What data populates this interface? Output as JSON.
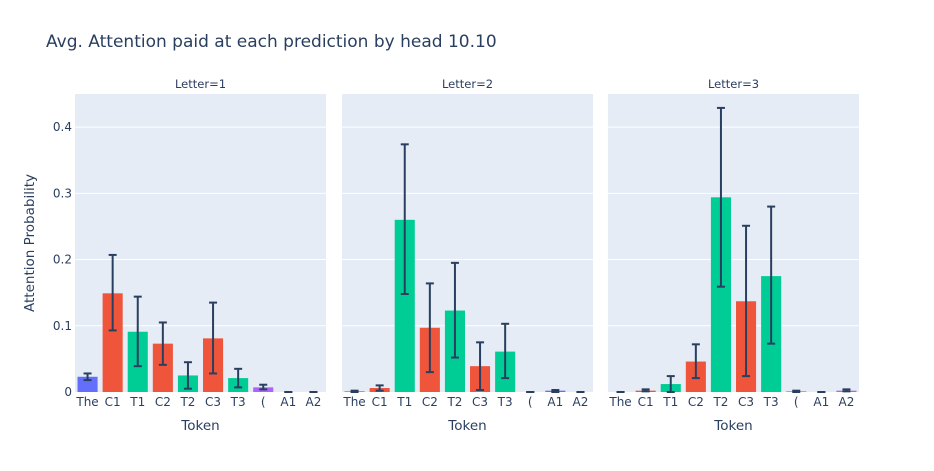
{
  "chart_data": {
    "type": "bar",
    "title": "Avg. Attention paid at each prediction by head 10.10",
    "ylabel": "Attention Probability",
    "xlabel": "Token",
    "ylim": [
      0,
      0.45
    ],
    "yticks": [
      0,
      0.1,
      0.2,
      0.3,
      0.4
    ],
    "ytick_labels": [
      "0",
      "0.1",
      "0.2",
      "0.3",
      "0.4"
    ],
    "categories": [
      "The",
      "C1",
      "T1",
      "C2",
      "T2",
      "C3",
      "T3",
      "(",
      "A1",
      "A2"
    ],
    "category_colors": [
      "#636efa",
      "#ef553b",
      "#00cc96",
      "#ef553b",
      "#00cc96",
      "#ef553b",
      "#00cc96",
      "#ab63fa",
      "#636efa",
      "#ab63fa"
    ],
    "error_bar_color": "#2a3f5f",
    "panel_background": "#e5ecf6",
    "facets": [
      {
        "label": "Letter=1",
        "values": [
          0.023,
          0.149,
          0.091,
          0.073,
          0.025,
          0.081,
          0.021,
          0.007,
          0.0,
          0.0
        ],
        "err_low": [
          0.018,
          0.093,
          0.039,
          0.041,
          0.005,
          0.028,
          0.007,
          0.004,
          0.0,
          0.0
        ],
        "err_high": [
          0.028,
          0.207,
          0.144,
          0.105,
          0.045,
          0.135,
          0.035,
          0.011,
          0.0,
          0.0
        ]
      },
      {
        "label": "Letter=2",
        "values": [
          0.001,
          0.006,
          0.26,
          0.097,
          0.123,
          0.039,
          0.061,
          0.0,
          0.002,
          0.0
        ],
        "err_low": [
          0.0,
          0.002,
          0.148,
          0.03,
          0.052,
          0.003,
          0.021,
          0.0,
          0.0,
          0.0
        ],
        "err_high": [
          0.002,
          0.01,
          0.374,
          0.164,
          0.195,
          0.075,
          0.103,
          0.0,
          0.003,
          0.0
        ]
      },
      {
        "label": "Letter=3",
        "values": [
          0.0,
          0.002,
          0.012,
          0.046,
          0.294,
          0.137,
          0.175,
          0.001,
          0.0,
          0.002
        ],
        "err_low": [
          0.0,
          0.001,
          0.0,
          0.021,
          0.159,
          0.024,
          0.073,
          0.0,
          0.0,
          0.001
        ],
        "err_high": [
          0.0,
          0.004,
          0.024,
          0.072,
          0.429,
          0.251,
          0.28,
          0.002,
          0.0,
          0.004
        ]
      }
    ],
    "grid": true,
    "legend": "none"
  }
}
